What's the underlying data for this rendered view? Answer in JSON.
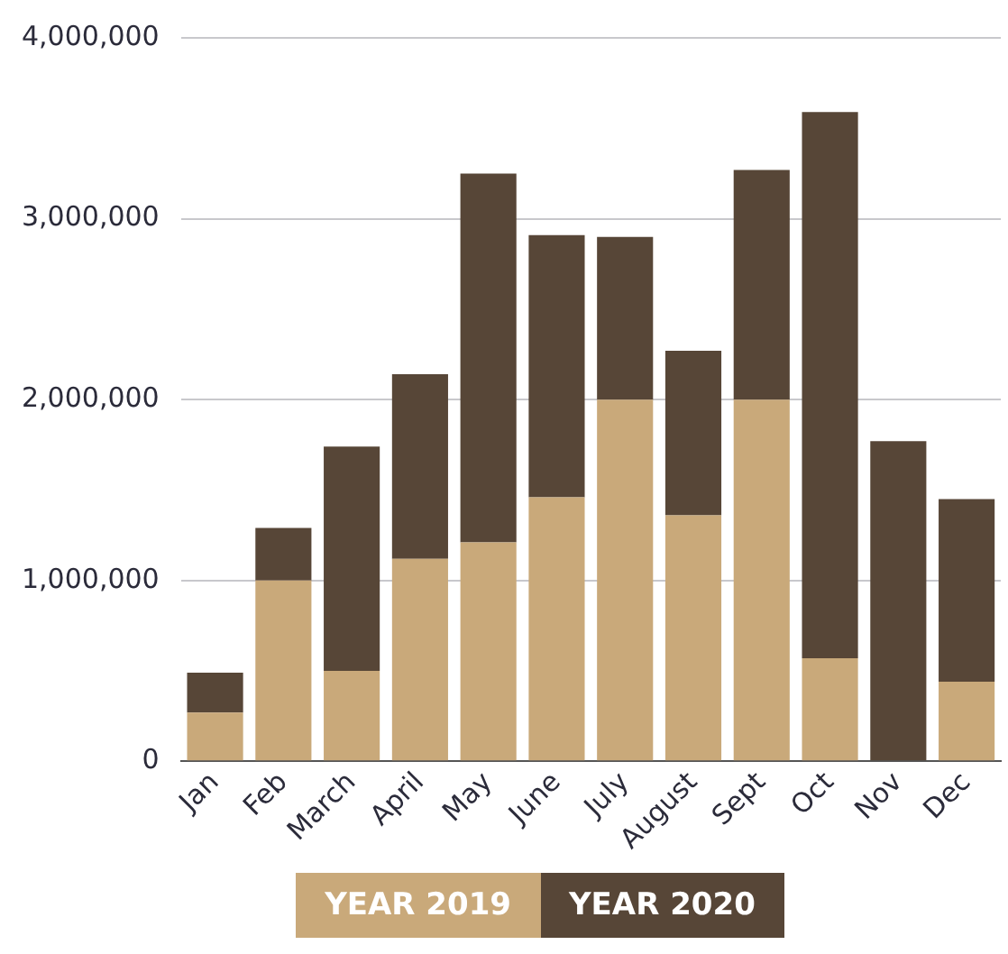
{
  "chart_data": {
    "type": "bar",
    "stacked": true,
    "categories": [
      "Jan",
      "Feb",
      "March",
      "April",
      "May",
      "June",
      "July",
      "August",
      "Sept",
      "Oct",
      "Nov",
      "Dec"
    ],
    "series": [
      {
        "name": "YEAR 2019",
        "color": "#c9a97a",
        "values": [
          270000,
          1000000,
          500000,
          1120000,
          1210000,
          1460000,
          2000000,
          1360000,
          2000000,
          570000,
          0,
          440000
        ]
      },
      {
        "name": "YEAR 2020",
        "color": "#574637",
        "values": [
          220000,
          290000,
          1240000,
          1020000,
          2040000,
          1450000,
          900000,
          910000,
          1270000,
          3020000,
          1770000,
          1010000
        ]
      }
    ],
    "ylim": [
      0,
      4000000
    ],
    "yticks": [
      {
        "value": 0,
        "label": "0"
      },
      {
        "value": 1000000,
        "label": "1,000,000"
      },
      {
        "value": 2000000,
        "label": "2,000,000"
      },
      {
        "value": 3000000,
        "label": "3,000,000"
      },
      {
        "value": 4000000,
        "label": "4,000,000"
      }
    ],
    "grid": "y",
    "legend": "bottom"
  }
}
